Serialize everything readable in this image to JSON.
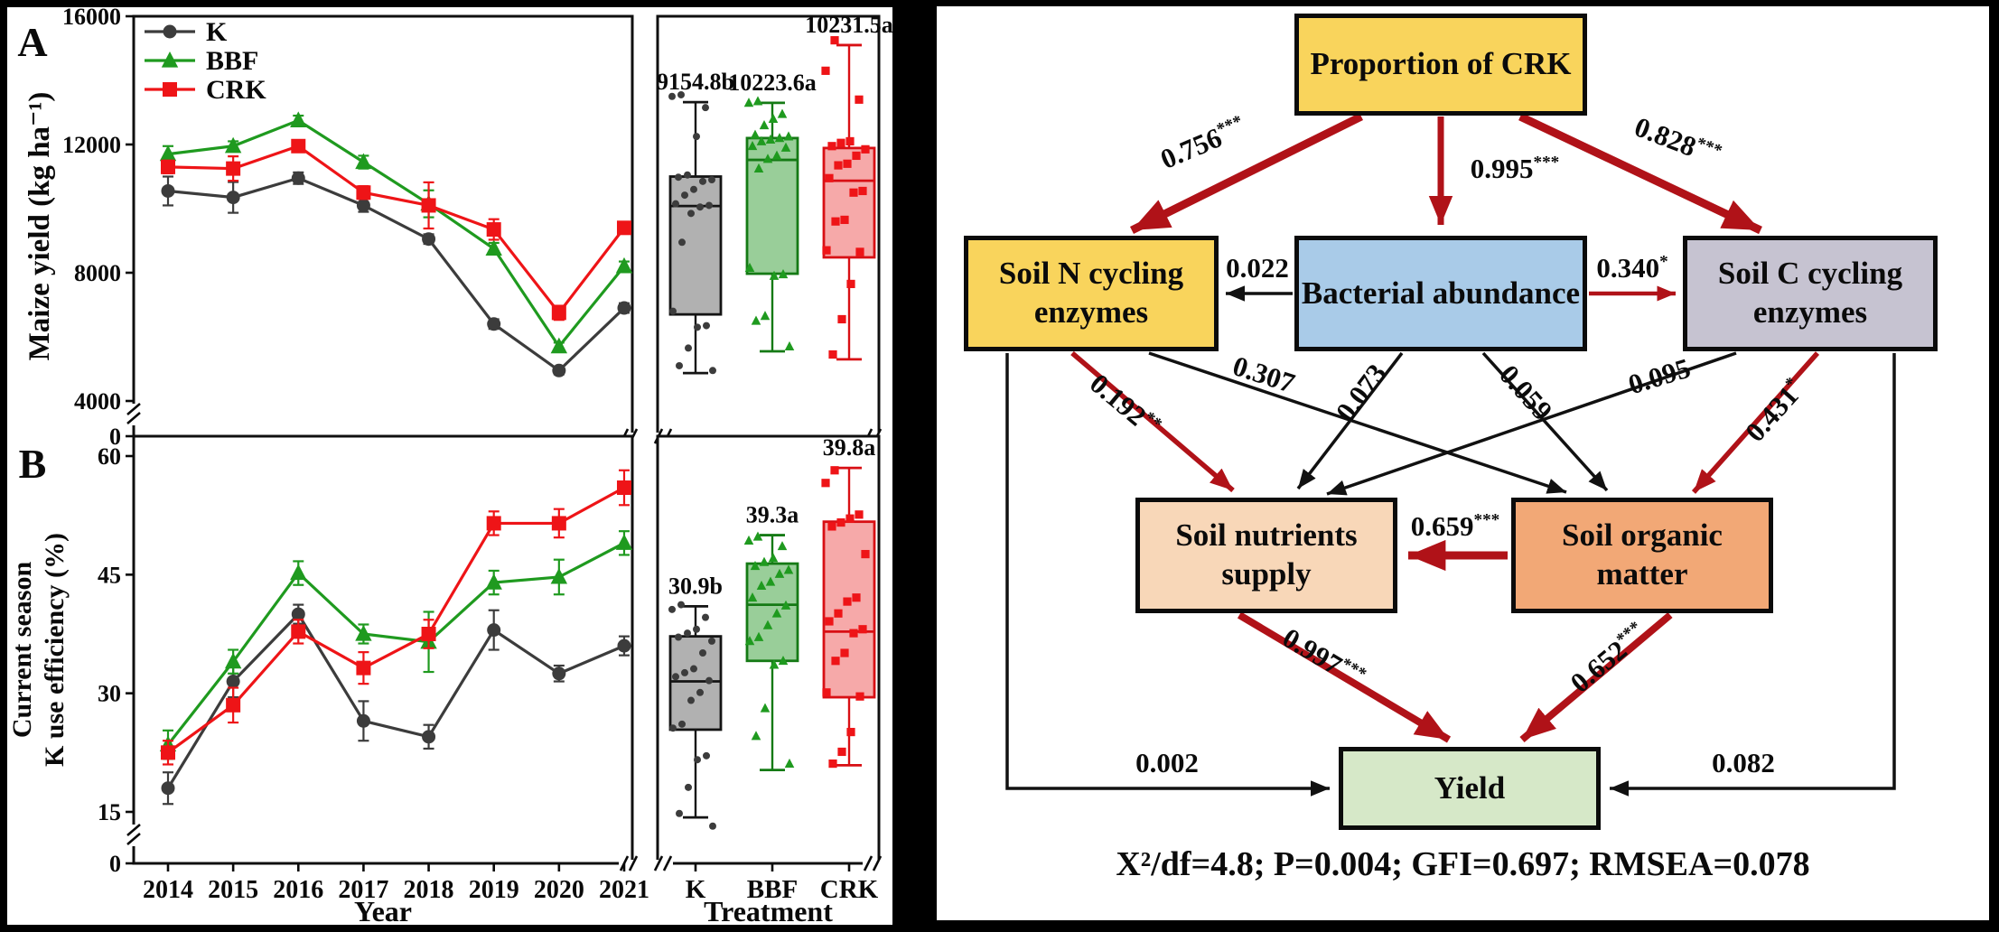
{
  "chart_data": [
    {
      "type": "line+box",
      "panel_letter": "A",
      "ylabel": "Maize yield (kg ha⁻¹)",
      "yticks": [
        0,
        4000,
        8000,
        12000,
        16000
      ],
      "ylim": [
        0,
        16000
      ],
      "axis_break_between": [
        0,
        4000
      ],
      "grid": false,
      "legend_position": "top-left",
      "categories": [
        2014,
        2015,
        2016,
        2017,
        2018,
        2019,
        2020,
        2021
      ],
      "series": [
        {
          "name": "K",
          "marker": "circle",
          "color": "#3c3c3c",
          "values": [
            10550,
            10350,
            10950,
            10100,
            9050,
            6400,
            4950,
            6900
          ],
          "errors": [
            450,
            480,
            180,
            200,
            150,
            150,
            120,
            150
          ]
        },
        {
          "name": "BBF",
          "marker": "triangle",
          "color": "#1f9a1f",
          "values": [
            11700,
            11950,
            12750,
            11450,
            10150,
            8750,
            5700,
            8200
          ],
          "errors": [
            250,
            150,
            150,
            200,
            420,
            180,
            120,
            150
          ]
        },
        {
          "name": "CRK",
          "marker": "square",
          "color": "#ee1417",
          "values": [
            11300,
            11250,
            11950,
            10500,
            10100,
            9350,
            6750,
            9400
          ],
          "errors": [
            200,
            380,
            150,
            200,
            720,
            320,
            220,
            150
          ]
        }
      ],
      "box_categories": [
        "K",
        "BBF",
        "CRK"
      ],
      "boxes": [
        {
          "name": "K",
          "mean_label": "9154.8b",
          "whisker_low": 4870,
          "q1": 6700,
          "median": 10080,
          "q3": 11000,
          "whisker_high": 13320,
          "fill": "#a8a8a8",
          "stroke": "#141414",
          "points": [
            13550,
            13500,
            13150,
            12250,
            11050,
            10980,
            10900,
            10850,
            10600,
            10420,
            10150,
            10100,
            10050,
            9850,
            8950,
            6800,
            6350,
            6300,
            5650,
            5100,
            4950
          ]
        },
        {
          "name": "BBF",
          "mean_label": "10223.6a",
          "whisker_low": 5550,
          "q1": 7970,
          "median": 11520,
          "q3": 12200,
          "whisker_high": 13300,
          "fill": "#8ec98e",
          "stroke": "#157a15",
          "points": [
            13350,
            13300,
            12950,
            12800,
            12600,
            12300,
            12250,
            12200,
            12150,
            12100,
            11950,
            11900,
            11650,
            11550,
            11250,
            8150,
            7950,
            7900,
            6650,
            6500,
            5700
          ]
        },
        {
          "name": "CRK",
          "mean_label": "10231.5a",
          "whisker_low": 5300,
          "q1": 8480,
          "median": 10870,
          "q3": 11890,
          "whisker_high": 15100,
          "fill": "#f5a0a0",
          "stroke": "#d80f14",
          "points": [
            15250,
            14300,
            13400,
            12100,
            12050,
            11950,
            11850,
            11650,
            11400,
            11350,
            10950,
            10550,
            10500,
            9650,
            9600,
            8700,
            8650,
            7650,
            6550,
            5450
          ]
        }
      ]
    },
    {
      "type": "line+box",
      "panel_letter": "B",
      "ylabel_lines": [
        "Current season",
        "K use efficiency (%)"
      ],
      "xlabel": "Year",
      "box_section_xlabel": "Treatment",
      "yticks": [
        0,
        15,
        30,
        45,
        60
      ],
      "ylim": [
        0,
        60
      ],
      "axis_break_between": [
        0,
        15
      ],
      "grid": false,
      "categories": [
        2014,
        2015,
        2016,
        2017,
        2018,
        2019,
        2020,
        2021
      ],
      "series": [
        {
          "name": "K",
          "marker": "circle",
          "color": "#3c3c3c",
          "values": [
            18,
            31.5,
            40,
            26.5,
            24.5,
            38,
            32.5,
            36
          ],
          "errors": [
            2.0,
            2.0,
            1.2,
            2.5,
            1.5,
            2.5,
            1.0,
            1.2
          ]
        },
        {
          "name": "BBF",
          "marker": "triangle",
          "color": "#1f9a1f",
          "values": [
            23.5,
            34,
            45.2,
            37.5,
            36.5,
            44,
            44.7,
            49
          ],
          "errors": [
            1.8,
            1.5,
            1.5,
            1.2,
            3.8,
            1.5,
            2.2,
            1.5
          ]
        },
        {
          "name": "CRK",
          "marker": "square",
          "color": "#ee1417",
          "values": [
            22.5,
            28.5,
            37.8,
            33.2,
            37.5,
            51.5,
            51.5,
            56
          ],
          "errors": [
            1.5,
            2.2,
            1.5,
            2.0,
            1.8,
            1.5,
            1.8,
            2.2
          ]
        }
      ],
      "box_categories": [
        "K",
        "BBF",
        "CRK"
      ],
      "boxes": [
        {
          "name": "K",
          "mean_label": "30.9b",
          "whisker_low": 14.3,
          "q1": 25.4,
          "median": 31.5,
          "q3": 37.2,
          "whisker_high": 41.0,
          "fill": "#a8a8a8",
          "stroke": "#141414",
          "points": [
            41.2,
            40.6,
            39.6,
            38.1,
            37.6,
            37.1,
            36.6,
            35.1,
            33.1,
            32.6,
            32.1,
            31.6,
            30.1,
            29.1,
            26.1,
            25.6,
            22.1,
            21.6,
            18.1,
            14.8,
            13.2
          ]
        },
        {
          "name": "BBF",
          "mean_label": "39.3a",
          "whisker_low": 20.3,
          "q1": 34.1,
          "median": 41.2,
          "q3": 46.4,
          "whisker_high": 50.0,
          "fill": "#8ec98e",
          "stroke": "#157a15",
          "points": [
            49.8,
            49.3,
            48.6,
            47.1,
            46.6,
            46.1,
            45.6,
            45.1,
            44.1,
            43.6,
            42.1,
            41.1,
            40.1,
            38.6,
            37.1,
            36.6,
            34.1,
            33.6,
            28.1,
            24.6,
            21.1
          ]
        },
        {
          "name": "CRK",
          "mean_label": "39.8a",
          "whisker_low": 20.9,
          "q1": 29.5,
          "median": 37.8,
          "q3": 51.7,
          "whisker_high": 58.5,
          "fill": "#f5a0a0",
          "stroke": "#d80f14",
          "points": [
            58.2,
            56.6,
            52.6,
            52.1,
            51.6,
            51.1,
            47.6,
            42.1,
            41.6,
            40.1,
            39.1,
            38.1,
            37.6,
            35.1,
            34.1,
            30.1,
            29.6,
            25.1,
            22.6,
            21.1
          ]
        }
      ]
    }
  ],
  "sem": {
    "colors": {
      "significant_path": "#b01218",
      "nonsignificant_path": "#111111"
    },
    "nodes": [
      {
        "id": "prop",
        "label": "Proportion of CRK",
        "fill": "#f9d45c"
      },
      {
        "id": "soiln",
        "label": "Soil N cycling enzymes",
        "fill": "#f9d45c"
      },
      {
        "id": "bact",
        "label": "Bacterial abundance",
        "fill": "#a9cbe8"
      },
      {
        "id": "soilc",
        "label": "Soil C cycling enzymes",
        "fill": "#c6c3d1"
      },
      {
        "id": "nutri",
        "label": "Soil nutrients supply",
        "fill": "#f8d7b8"
      },
      {
        "id": "som",
        "label": "Soil organic matter",
        "fill": "#f2a876"
      },
      {
        "id": "yield",
        "label": "Yield",
        "fill": "#d6e8c8"
      }
    ],
    "edges": [
      {
        "id": "prop_soiln",
        "from": "prop",
        "to": "soiln",
        "label": "0.756",
        "stars": "***",
        "significant": true
      },
      {
        "id": "prop_bact",
        "from": "prop",
        "to": "bact",
        "label": "0.995",
        "stars": "***",
        "significant": true
      },
      {
        "id": "prop_soilc",
        "from": "prop",
        "to": "soilc",
        "label": "0.828",
        "stars": "***",
        "significant": true
      },
      {
        "id": "bact_soiln",
        "from": "bact",
        "to": "soiln",
        "label": "0.022",
        "stars": "",
        "significant": false
      },
      {
        "id": "bact_soilc",
        "from": "bact",
        "to": "soilc",
        "label": "0.340",
        "stars": "*",
        "significant": true
      },
      {
        "id": "soiln_nutri",
        "from": "soiln",
        "to": "nutri",
        "label": "0.192",
        "stars": "**",
        "significant": true
      },
      {
        "id": "soiln_som",
        "from": "soiln",
        "to": "som",
        "label": "0.307",
        "stars": "",
        "significant": false
      },
      {
        "id": "bact_nutri",
        "from": "bact",
        "to": "nutri",
        "label": "0.073",
        "stars": "",
        "significant": false
      },
      {
        "id": "bact_som",
        "from": "bact",
        "to": "som",
        "label": "0.059",
        "stars": "",
        "significant": false
      },
      {
        "id": "soilc_nutri",
        "from": "soilc",
        "to": "nutri",
        "label": "0.095",
        "stars": "",
        "significant": false
      },
      {
        "id": "soilc_som",
        "from": "soilc",
        "to": "som",
        "label": "0.431",
        "stars": "*",
        "significant": true
      },
      {
        "id": "som_nutri",
        "from": "som",
        "to": "nutri",
        "label": "0.659",
        "stars": "***",
        "significant": true
      },
      {
        "id": "nutri_yield",
        "from": "nutri",
        "to": "yield",
        "label": "0.997",
        "stars": "***",
        "significant": true
      },
      {
        "id": "som_yield",
        "from": "som",
        "to": "yield",
        "label": "0.652",
        "stars": "***",
        "significant": true
      },
      {
        "id": "soiln_yield",
        "from": "soiln",
        "to": "yield",
        "label": "0.002",
        "stars": "",
        "significant": false
      },
      {
        "id": "soilc_yield",
        "from": "soilc",
        "to": "yield",
        "label": "0.082",
        "stars": "",
        "significant": false
      }
    ],
    "fit_text": "X²/df=4.8; P=0.004; GFI=0.697; RMSEA=0.078"
  }
}
